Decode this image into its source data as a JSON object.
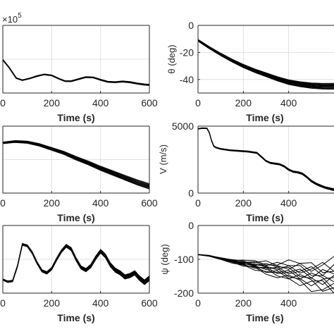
{
  "figure": {
    "background": "#ffffff",
    "line_color": "#000000"
  },
  "chart_data": [
    {
      "id": "p1",
      "type": "line",
      "title": "",
      "xlabel": "Time (s)",
      "ylabel": "",
      "xlim": [
        0,
        600
      ],
      "ylim": [
        0,
        1
      ],
      "xticks": [
        0,
        200,
        400,
        600
      ],
      "xtick_labels": [
        "0",
        "200",
        "400",
        "600"
      ],
      "yticks": [],
      "ytick_labels": [],
      "exponent_label": "×10",
      "exponent_sup": "5",
      "grid": true,
      "trajectory_count": 4,
      "trajectory_spread": 0.006,
      "series": [
        {
          "x": [
            0,
            25,
            55,
            80,
            110,
            140,
            170,
            200,
            230,
            255,
            280,
            310,
            340,
            370,
            400,
            430,
            460,
            490,
            520,
            550,
            580,
            600
          ],
          "y": [
            0.49,
            0.38,
            0.22,
            0.19,
            0.215,
            0.25,
            0.275,
            0.26,
            0.21,
            0.175,
            0.175,
            0.205,
            0.235,
            0.23,
            0.195,
            0.165,
            0.16,
            0.17,
            0.16,
            0.14,
            0.125,
            0.12
          ]
        }
      ]
    },
    {
      "id": "p2",
      "type": "line",
      "title": "",
      "xlabel": "Time (s)",
      "ylabel": "θ (deg)",
      "xlim": [
        0,
        600
      ],
      "ylim": [
        -50,
        0
      ],
      "xticks": [
        0,
        200,
        400
      ],
      "xtick_labels": [
        "0",
        "200",
        "400"
      ],
      "yticks": [
        0,
        -20,
        -40
      ],
      "ytick_labels": [
        "0",
        "-20",
        "-40"
      ],
      "grid": true,
      "trajectory_count": 10,
      "trajectory_spread": 2.2,
      "series": [
        {
          "x": [
            0,
            50,
            100,
            150,
            200,
            250,
            300,
            350,
            400,
            450,
            500,
            550,
            600
          ],
          "y": [
            -11,
            -16.5,
            -21.5,
            -26,
            -30,
            -33.5,
            -36.5,
            -39.5,
            -42,
            -43.5,
            -44.5,
            -45,
            -45
          ]
        }
      ]
    },
    {
      "id": "p3",
      "type": "line",
      "title": "",
      "xlabel": "Time (s)",
      "ylabel": "",
      "xlim": [
        0,
        600
      ],
      "ylim": [
        0,
        1
      ],
      "xticks": [
        0,
        200,
        400,
        600
      ],
      "xtick_labels": [
        "0",
        "200",
        "400",
        "600"
      ],
      "yticks": [],
      "ytick_labels": [],
      "grid": true,
      "trajectory_count": 8,
      "trajectory_spread": 0.04,
      "series": [
        {
          "x": [
            0,
            50,
            100,
            150,
            200,
            250,
            300,
            350,
            400,
            450,
            500,
            550,
            600
          ],
          "y": [
            0.75,
            0.77,
            0.76,
            0.72,
            0.66,
            0.6,
            0.52,
            0.45,
            0.37,
            0.3,
            0.23,
            0.16,
            0.1
          ]
        }
      ]
    },
    {
      "id": "p4",
      "type": "line",
      "title": "",
      "xlabel": "Time (s)",
      "ylabel": "V (m/s)",
      "xlim": [
        0,
        600
      ],
      "ylim": [
        0,
        5000
      ],
      "xticks": [
        0,
        200,
        400
      ],
      "xtick_labels": [
        "0",
        "200",
        "400"
      ],
      "yticks": [
        5000,
        0
      ],
      "ytick_labels": [
        "5000",
        "0"
      ],
      "grid": true,
      "trajectory_count": 8,
      "trajectory_spread": 70,
      "series": [
        {
          "x": [
            0,
            20,
            40,
            50,
            60,
            70,
            80,
            90,
            100,
            140,
            180,
            220,
            260,
            280,
            300,
            320,
            340,
            360,
            380,
            400,
            420,
            440,
            460,
            480,
            500,
            520,
            540,
            560,
            580,
            600
          ],
          "y": [
            4800,
            4850,
            4830,
            4500,
            3900,
            3500,
            3400,
            3350,
            3300,
            3200,
            3150,
            3100,
            3000,
            2700,
            2400,
            2250,
            2200,
            2150,
            2000,
            1750,
            1600,
            1550,
            1450,
            1200,
            900,
            700,
            550,
            420,
            330,
            250
          ]
        }
      ]
    },
    {
      "id": "p5",
      "type": "line",
      "title": "",
      "xlabel": "Time (s)",
      "ylabel": "",
      "xlim": [
        0,
        600
      ],
      "ylim": [
        0,
        1
      ],
      "xticks": [
        0,
        200,
        400,
        600
      ],
      "xtick_labels": [
        "0",
        "200",
        "400",
        "600"
      ],
      "yticks": [],
      "ytick_labels": [],
      "grid": true,
      "trajectory_count": 8,
      "trajectory_spread": 0.035,
      "series": [
        {
          "x": [
            0,
            20,
            40,
            60,
            80,
            100,
            120,
            140,
            160,
            180,
            200,
            220,
            240,
            260,
            280,
            300,
            320,
            340,
            360,
            380,
            400,
            420,
            440,
            460,
            480,
            500,
            520,
            540,
            560,
            580,
            600
          ],
          "y": [
            0.2,
            0.17,
            0.18,
            0.4,
            0.72,
            0.7,
            0.6,
            0.45,
            0.33,
            0.3,
            0.36,
            0.5,
            0.62,
            0.7,
            0.65,
            0.5,
            0.38,
            0.34,
            0.4,
            0.52,
            0.62,
            0.55,
            0.42,
            0.34,
            0.3,
            0.24,
            0.26,
            0.3,
            0.22,
            0.16,
            0.22
          ]
        }
      ]
    },
    {
      "id": "p6",
      "type": "line",
      "title": "",
      "xlabel": "Time (s)",
      "ylabel": "ψ (deg)",
      "xlim": [
        0,
        600
      ],
      "ylim": [
        -200,
        0
      ],
      "xticks": [
        0,
        200,
        400
      ],
      "xtick_labels": [
        "0",
        "200",
        "400"
      ],
      "yticks": [
        0,
        -100,
        -200
      ],
      "ytick_labels": [
        "0",
        "-100",
        "-200"
      ],
      "grid": true,
      "trajectory_count": 12,
      "trajectory_spread": [
        0.5,
        1,
        2,
        4,
        7,
        10,
        14,
        18,
        22,
        26,
        30,
        35,
        40
      ],
      "series": [
        {
          "x": [
            0,
            50,
            100,
            150,
            200,
            250,
            300,
            350,
            400,
            450,
            500,
            550,
            600
          ],
          "y": [
            -86,
            -90,
            -98,
            -105,
            -112,
            -118,
            -124,
            -130,
            -136,
            -142,
            -148,
            -152,
            -155
          ]
        }
      ]
    }
  ]
}
